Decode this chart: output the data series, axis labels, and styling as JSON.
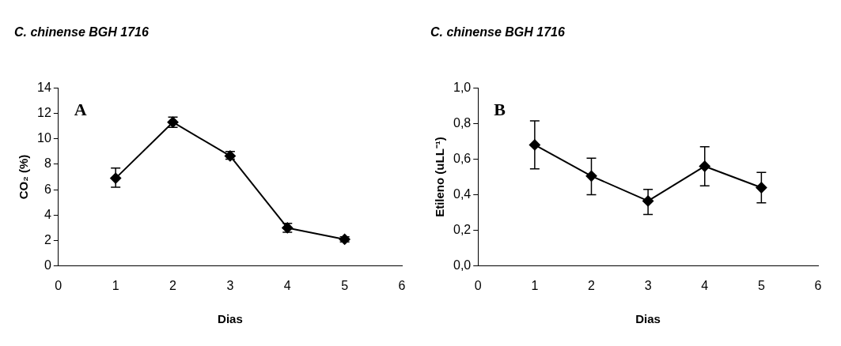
{
  "chart_data": [
    {
      "type": "line",
      "title": "C. chinense BGH 1716",
      "xlabel": "Dias",
      "ylabel": "CO₂ (%)",
      "annotations": [
        "A"
      ],
      "x": [
        1,
        2,
        3,
        4,
        5
      ],
      "series": [
        {
          "color": "#000000",
          "values": [
            6.9,
            11.3,
            8.65,
            3.0,
            2.1
          ],
          "errors": [
            [
              6.2,
              7.7
            ],
            [
              10.9,
              11.7
            ],
            [
              8.4,
              9.0
            ],
            [
              2.65,
              3.35
            ],
            [
              1.9,
              2.3
            ]
          ]
        }
      ],
      "xlim": [
        0,
        6
      ],
      "xticks": [
        0,
        1,
        2,
        3,
        4,
        5,
        6
      ],
      "ylim": [
        0,
        14
      ],
      "yticks": [
        0,
        2,
        4,
        6,
        8,
        10,
        12,
        14
      ],
      "marker": "diamond",
      "line_style": "solid",
      "legend": false,
      "grid": false
    },
    {
      "type": "line",
      "title": "C. chinense BGH 1716",
      "xlabel": "Dias",
      "ylabel": "Etileno (uLL⁻¹)",
      "annotations": [
        "B"
      ],
      "x": [
        1,
        2,
        3,
        4,
        5
      ],
      "series": [
        {
          "color": "#000000",
          "values": [
            0.68,
            0.505,
            0.365,
            0.56,
            0.44
          ],
          "errors": [
            [
              0.545,
              0.815
            ],
            [
              0.4,
              0.605
            ],
            [
              0.29,
              0.43
            ],
            [
              0.45,
              0.67
            ],
            [
              0.355,
              0.525
            ]
          ]
        }
      ],
      "xlim": [
        0,
        6
      ],
      "xticks": [
        0,
        1,
        2,
        3,
        4,
        5,
        6
      ],
      "ylim": [
        0,
        1.0
      ],
      "yticks": [
        {
          "value": 0,
          "label": "0,0"
        },
        {
          "value": 0.2,
          "label": "0,2"
        },
        {
          "value": 0.4,
          "label": "0,4"
        },
        {
          "value": 0.6,
          "label": "0,6"
        },
        {
          "value": 0.8,
          "label": "0,8"
        },
        {
          "value": 1.0,
          "label": "1,0"
        }
      ],
      "marker": "diamond",
      "line_style": "solid",
      "legend": false,
      "grid": false
    }
  ]
}
